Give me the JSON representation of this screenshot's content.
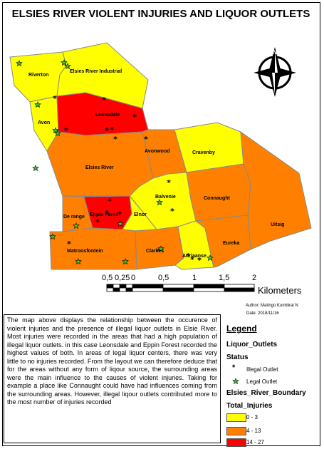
{
  "title": "ELSIES RIVER VIOLENT INJURIES AND LIQUOR OUTLETS",
  "colors": {
    "low": "#ffff00",
    "mid": "#ff8000",
    "high": "#ff0000",
    "legal": "#33cc33"
  },
  "areas": [
    {
      "name": "Riverton",
      "category": "0 - 3"
    },
    {
      "name": "Elsies River Industrial",
      "category": "0 - 3"
    },
    {
      "name": "Avon",
      "category": "0 - 3"
    },
    {
      "name": "Leonsdale",
      "category": "14 - 27"
    },
    {
      "name": "Avonwood",
      "category": "4 - 13"
    },
    {
      "name": "Cravenby",
      "category": "0 - 3"
    },
    {
      "name": "Elsies River",
      "category": "4 - 13"
    },
    {
      "name": "Balvenie",
      "category": "0 - 3"
    },
    {
      "name": "Connaught",
      "category": "4 - 13"
    },
    {
      "name": "Uitsig",
      "category": "4 - 13"
    },
    {
      "name": "De range",
      "category": "4 - 13"
    },
    {
      "name": "Eppin Forest",
      "category": "14 - 27"
    },
    {
      "name": "Elnor",
      "category": "0 - 3"
    },
    {
      "name": "Matroosfontein",
      "category": "4 - 13"
    },
    {
      "name": "Clarkes",
      "category": "4 - 13"
    },
    {
      "name": "Adriaanse",
      "category": "0 - 3"
    },
    {
      "name": "Eureka",
      "category": "4 - 13"
    }
  ],
  "labels": {
    "riverton": "Riverton",
    "industrial": "Elsies River Industrial",
    "avon": "Avon",
    "leonsdale": "Leonsdale",
    "avonwood": "Avonwood",
    "cravenby": "Cravenby",
    "elsies_river": "Elsies River",
    "balvenie": "Balvenie",
    "connaught": "Connaught",
    "uitsig": "Uitsig",
    "derange": "De range",
    "eppin": "Eppin Forest",
    "elnor": "Elnor",
    "matroosfontein": "Matroosfontein",
    "clarkes": "Clarkes",
    "adriaanse": "Adriaanse",
    "eureka": "Eureka"
  },
  "north_label": "N",
  "scale": {
    "ticks": [
      "0,5",
      "0,25",
      "0",
      "0,5",
      "1",
      "1,5",
      "2"
    ],
    "unit": "Kilometers"
  },
  "author": "Author: Matingo Kumbirai N",
  "date": "Date: 2018/11/16",
  "description": "The map above displays the relationship between the occurence of violent injuries and the presence of illegal liquor outlets in Elsie River. Most injuries were recorded in the areas that had a high population of illegal liquor outlets. in this case Leonsdale and Eppin Forest recorded the highest values of both. In areas of legal liquor centers, there was very little to no injuries recorded. From the layout we can therefore deduce that for the areas without any form of liqour source, the surrounding areas were the main influence to the causes of violent injuries. Taking for example a place like Connaught could have had influences coming from the surrounding areas. However, illegal liqour outlets contributed more to the most number of injuries recorded",
  "legend": {
    "title": "Legend",
    "layer1": "Liquor_Outlets",
    "status": "Status",
    "illegal": "Illegal Outlet",
    "legal": "Legal Outlet",
    "layer2": "Elsies_River_Boundary",
    "field": "Total_Injuries",
    "class1": "0 - 3",
    "class2": "4 - 13",
    "class3": "14 - 27"
  }
}
